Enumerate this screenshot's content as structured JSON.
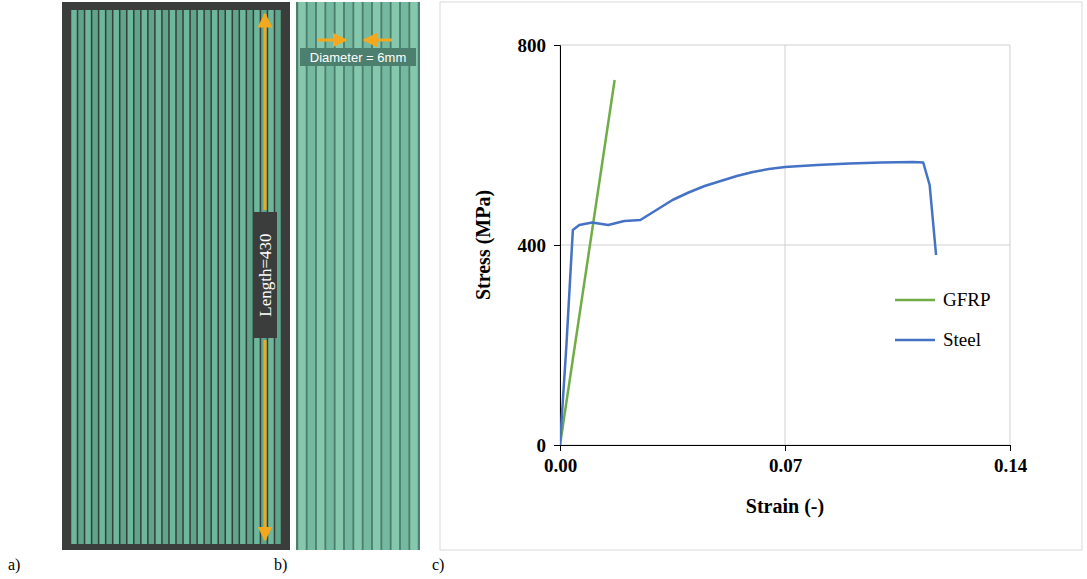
{
  "panels": [
    {
      "label": "a)",
      "annotation": "Length=430"
    },
    {
      "label": "b)",
      "annotation": "Diameter = 6mm"
    },
    {
      "label": "c)"
    }
  ],
  "chart_data": {
    "type": "line",
    "x_label": "Strain (-)",
    "y_label": "Stress (MPa)",
    "xlim": [
      0,
      0.14
    ],
    "xticks": [
      {
        "value": 0,
        "label": "0.00"
      },
      0.07,
      0.14
    ],
    "ylim": [
      0,
      800
    ],
    "yticks": [
      0,
      400,
      800
    ],
    "grid": true,
    "legend": "right",
    "series": [
      {
        "name": "GFRP",
        "color": "#70ad47",
        "x": [
          0,
          0.017
        ],
        "values": [
          0,
          730
        ]
      },
      {
        "name": "Steel",
        "color": "#4472c4",
        "x": [
          0,
          0.002,
          0.004,
          0.006,
          0.01,
          0.015,
          0.02,
          0.025,
          0.03,
          0.035,
          0.04,
          0.045,
          0.05,
          0.055,
          0.06,
          0.065,
          0.07,
          0.08,
          0.09,
          0.1,
          0.11,
          0.113,
          0.115,
          0.117
        ],
        "values": [
          0,
          200,
          430,
          440,
          445,
          440,
          448,
          450,
          470,
          490,
          505,
          518,
          528,
          538,
          546,
          552,
          556,
          560,
          563,
          565,
          566,
          565,
          520,
          380
        ]
      }
    ]
  }
}
